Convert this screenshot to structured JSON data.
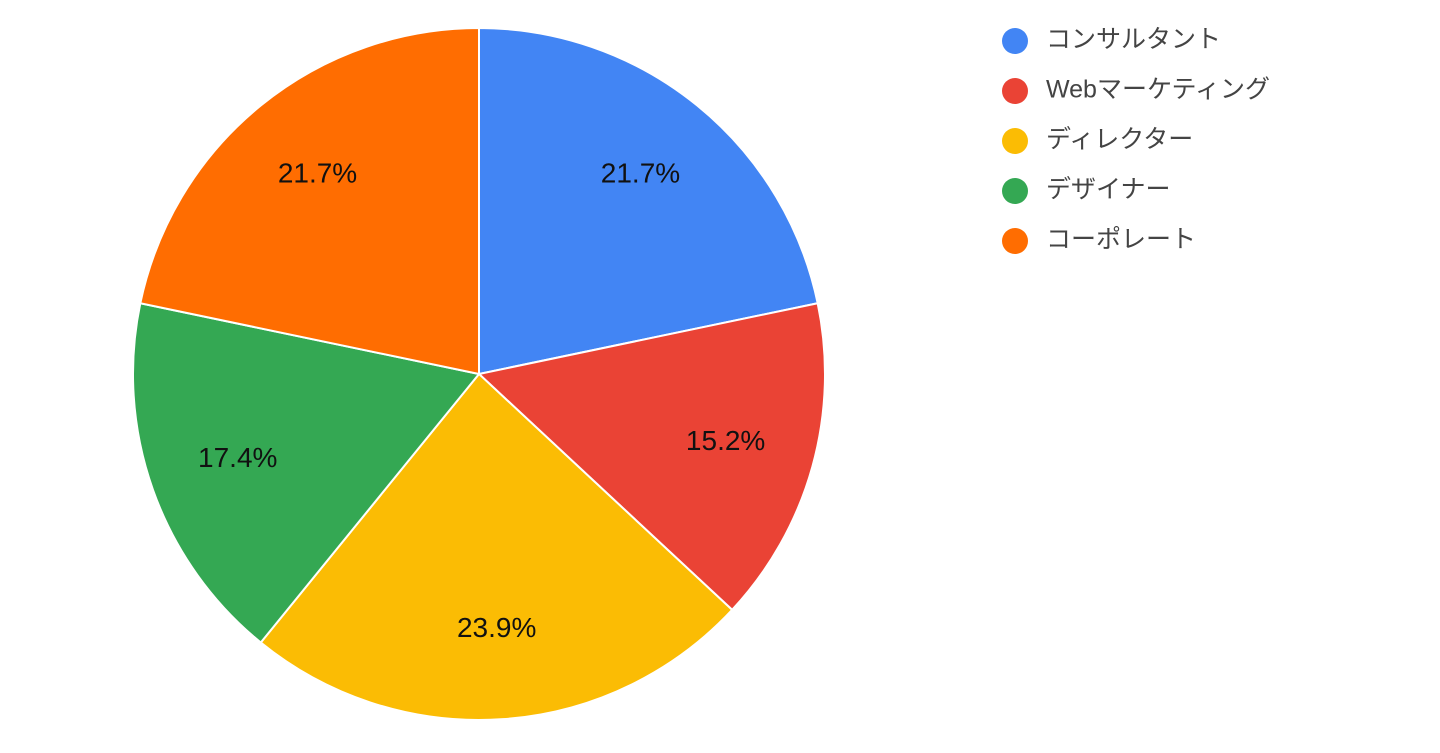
{
  "chart_data": {
    "type": "pie",
    "categories": [
      "コンサルタント",
      "Webマーケティング",
      "ディレクター",
      "デザイナー",
      "コーポレート"
    ],
    "values": [
      21.7,
      15.2,
      23.9,
      17.4,
      21.7
    ],
    "value_labels": [
      "21.7%",
      "15.2%",
      "23.9%",
      "17.4%",
      "21.7%"
    ],
    "colors": [
      "#4285f4",
      "#ea4335",
      "#fbbc04",
      "#34a853",
      "#ff6d01"
    ],
    "legend": "right"
  }
}
